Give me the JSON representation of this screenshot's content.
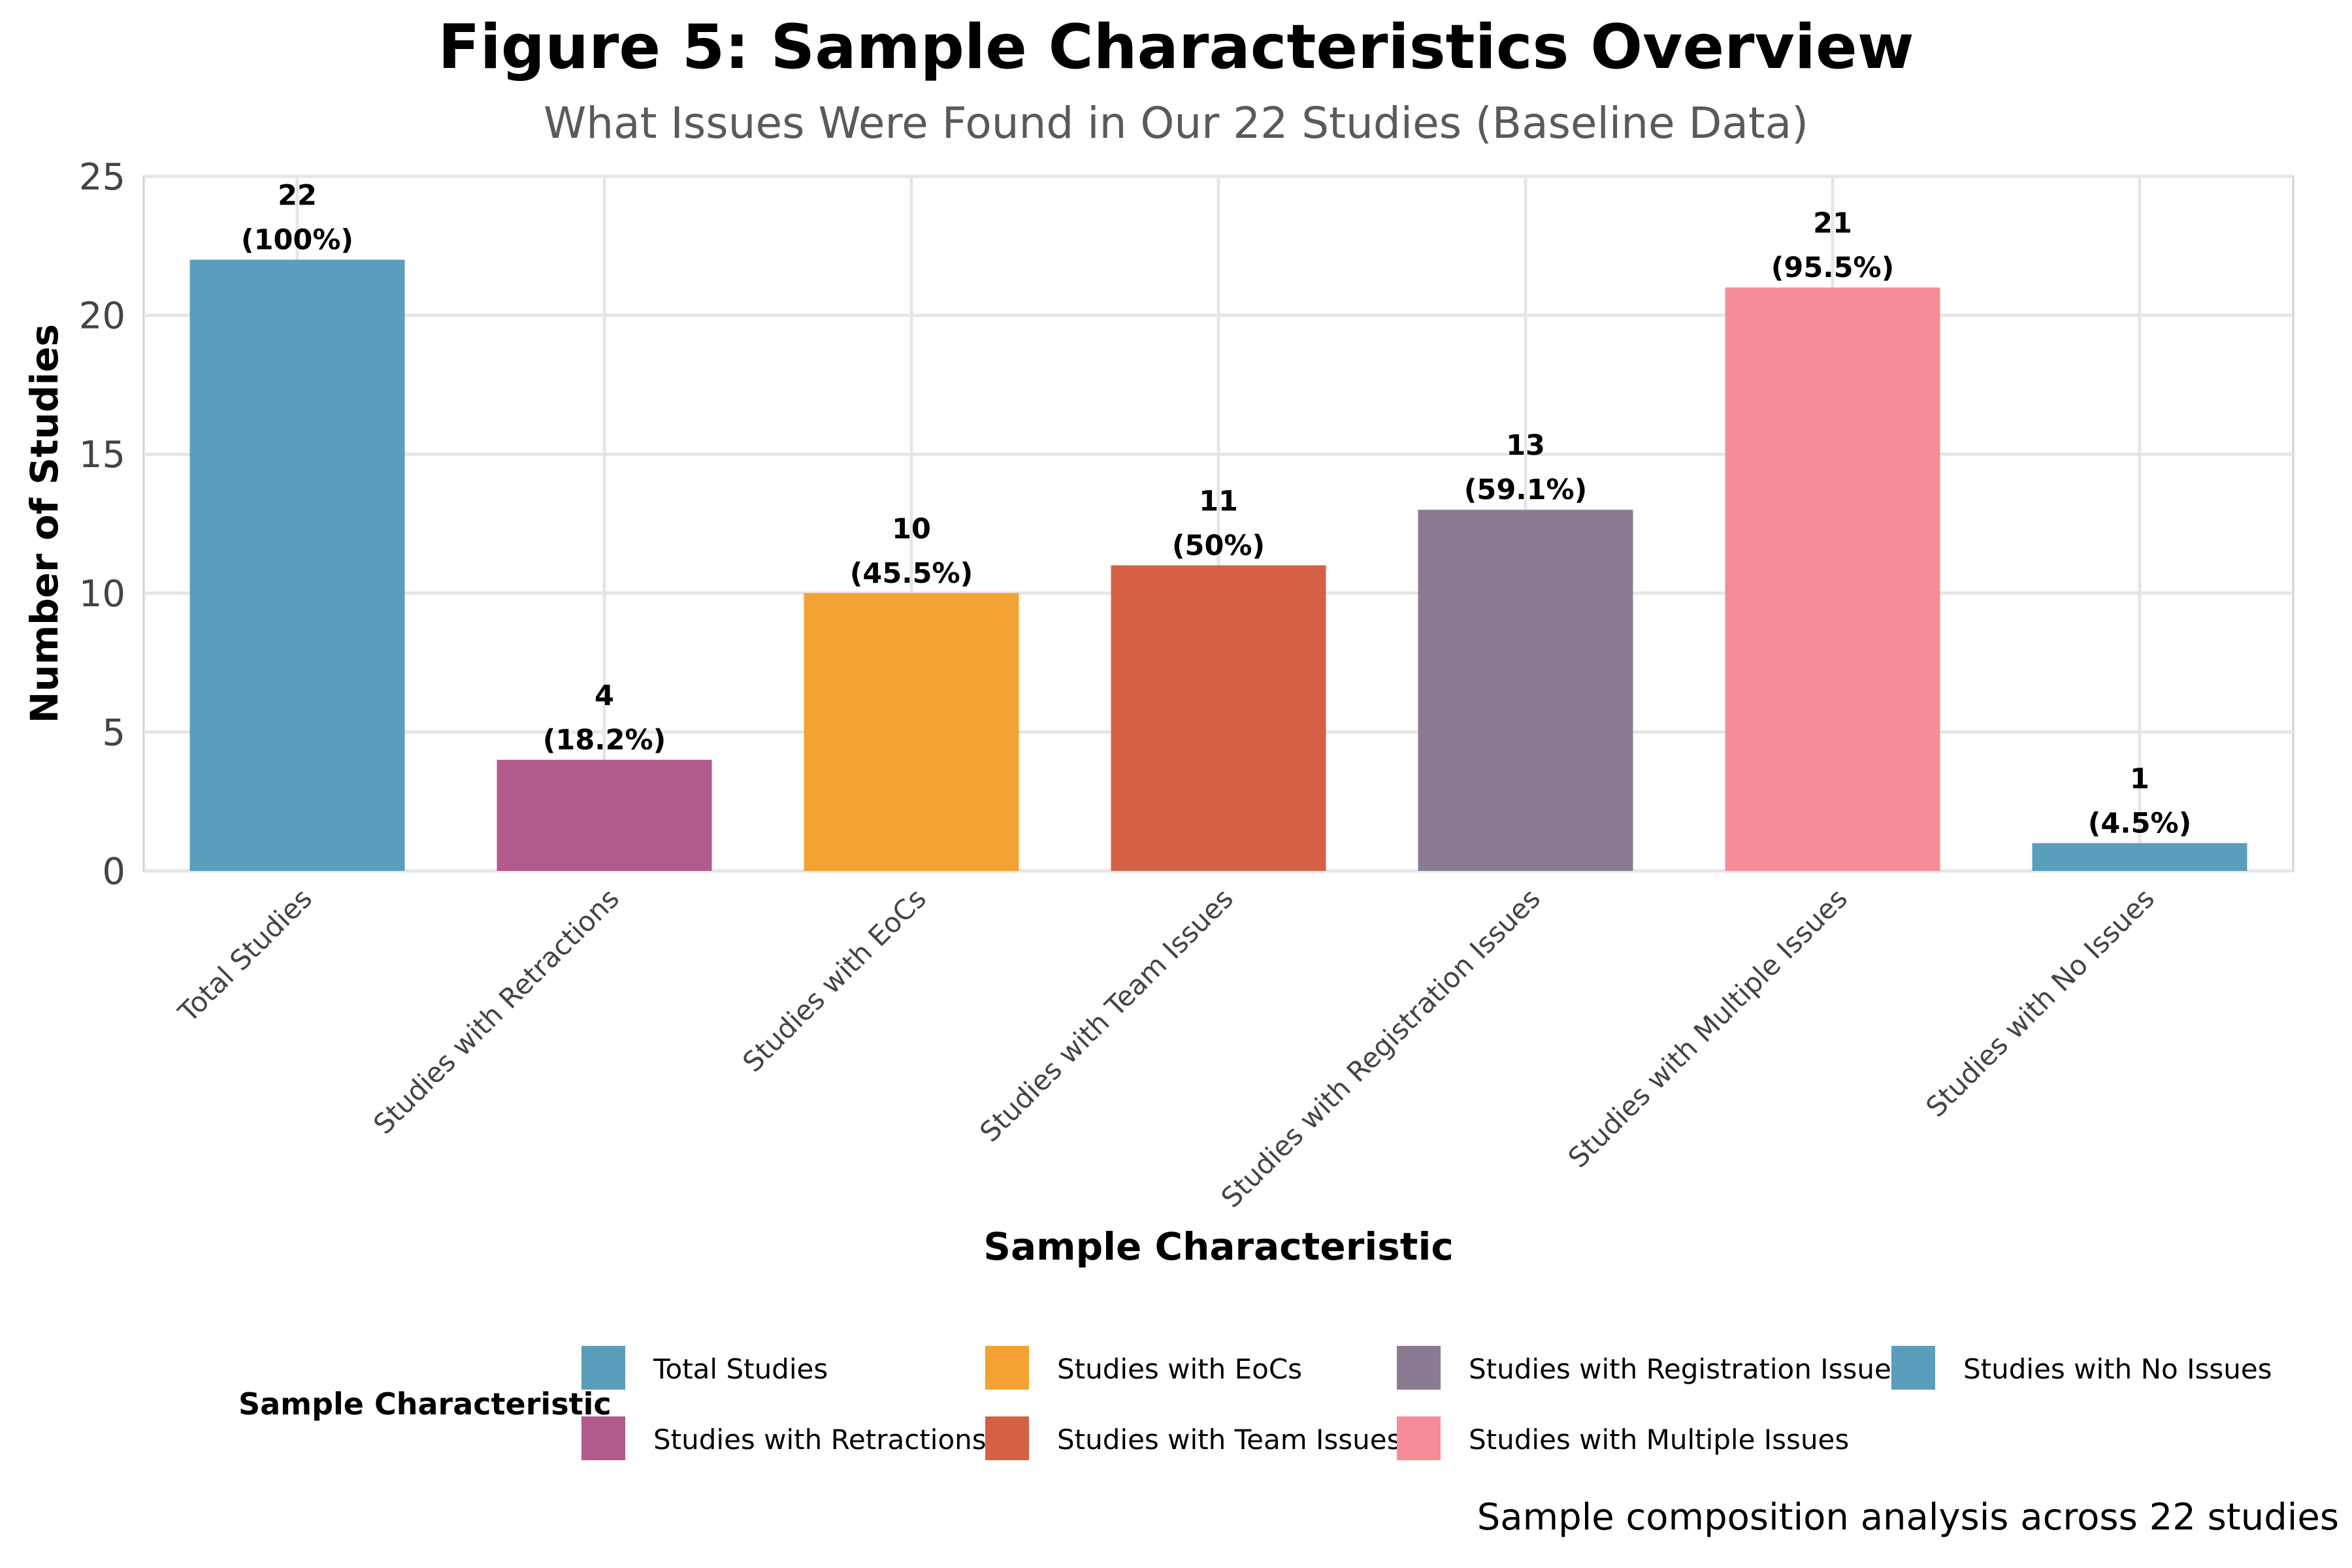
{
  "title": "Figure 5: Sample Characteristics Overview",
  "subtitle": "What Issues Were Found in Our 22 Studies (Baseline Data)",
  "caption": "Sample composition analysis across 22 studies",
  "legend_title": "Sample Characteristic",
  "chart_data": {
    "type": "bar",
    "title": "Figure 5: Sample Characteristics Overview",
    "subtitle": "What Issues Were Found in Our 22 Studies (Baseline Data)",
    "xlabel": "Sample Characteristic",
    "ylabel": "Number of Studies",
    "ylim": [
      0,
      25
    ],
    "yticks": [
      0,
      5,
      10,
      15,
      20,
      25
    ],
    "grid": true,
    "legend_position": "bottom",
    "categories": [
      "Total Studies",
      "Studies with Retractions",
      "Studies with EoCs",
      "Studies with Team Issues",
      "Studies with Registration Issues",
      "Studies with Multiple Issues",
      "Studies with No Issues"
    ],
    "values": [
      22,
      4,
      10,
      11,
      13,
      21,
      1
    ],
    "value_labels": [
      "22",
      "4",
      "10",
      "11",
      "13",
      "21",
      "1"
    ],
    "percent_labels": [
      "(100%)",
      "(18.2%)",
      "(45.5%)",
      "(50%)",
      "(59.1%)",
      "(95.5%)",
      "(4.5%)"
    ],
    "colors": [
      "#5A9EBB",
      "#B05B89",
      "#F4A233",
      "#D46146",
      "#8A7B92",
      "#F68C97",
      "#5A9EBB"
    ]
  }
}
